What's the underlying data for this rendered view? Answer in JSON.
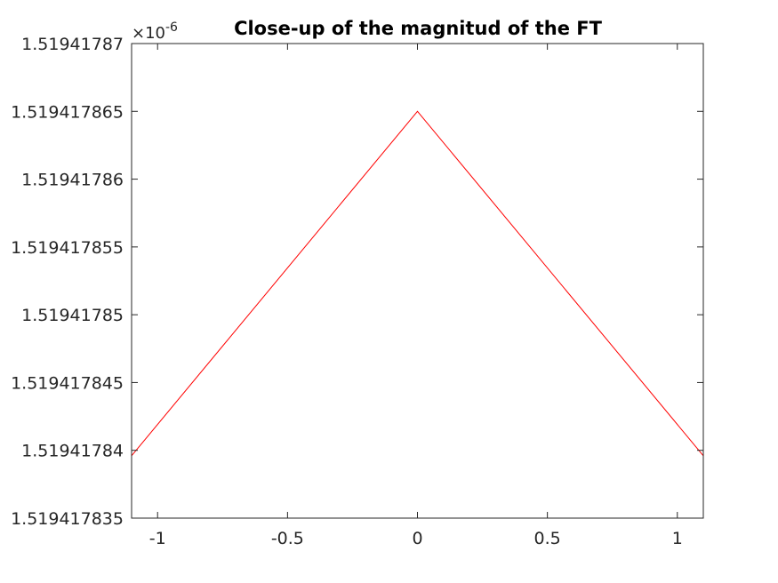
{
  "chart_data": {
    "type": "line",
    "title": "Close-up of the magnitud of the FT",
    "xlabel": "",
    "ylabel": "",
    "xlim": [
      -1.1,
      1.1
    ],
    "ylim": [
      1.519417835,
      1.51941787
    ],
    "y_exponent_base": "×10",
    "y_exponent_power": "-6",
    "x_ticks": [
      -1,
      -0.5,
      0,
      0.5,
      1
    ],
    "x_tick_labels": [
      "-1",
      "-0.5",
      "0",
      "0.5",
      "1"
    ],
    "y_ticks": [
      1.519417835,
      1.51941784,
      1.519417845,
      1.51941785,
      1.519417855,
      1.51941786,
      1.519417865,
      1.51941787
    ],
    "y_tick_labels": [
      "1.519417835",
      "1.51941784",
      "1.519417845",
      "1.51941785",
      "1.519417855",
      "1.51941786",
      "1.519417865",
      "1.51941787"
    ],
    "grid": false,
    "series": [
      {
        "color": "#ff0000",
        "x": [
          -1.1,
          0,
          1.1
        ],
        "y": [
          1.5194178396,
          1.519417865,
          1.5194178396
        ]
      }
    ]
  }
}
